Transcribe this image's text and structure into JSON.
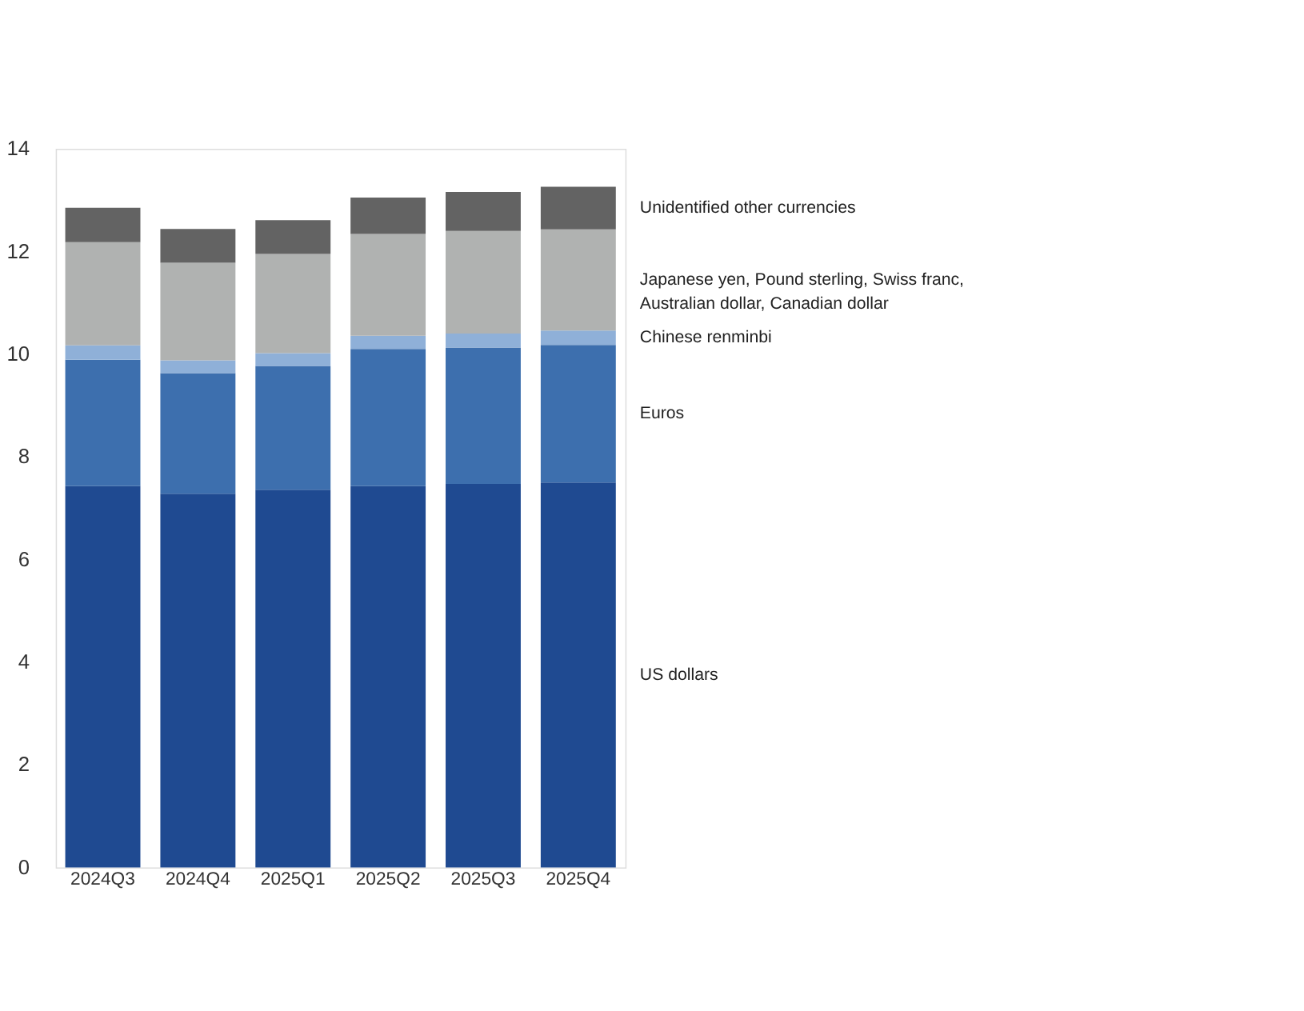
{
  "chart_data": {
    "type": "bar",
    "stacked": true,
    "categories": [
      "2024Q3",
      "2024Q4",
      "2025Q1",
      "2025Q2",
      "2025Q3",
      "2025Q4"
    ],
    "series": [
      {
        "name": "US dollars",
        "color": "#1f4a91",
        "values": [
          7.43,
          7.28,
          7.36,
          7.43,
          7.47,
          7.5
        ]
      },
      {
        "name": "Euros",
        "color": "#3d6fae",
        "values": [
          2.46,
          2.35,
          2.41,
          2.67,
          2.66,
          2.68
        ]
      },
      {
        "name": "Chinese renminbi",
        "color": "#8fb0d8",
        "values": [
          0.28,
          0.25,
          0.25,
          0.26,
          0.27,
          0.28
        ]
      },
      {
        "name": "Japanese yen, Pound sterling, Swiss franc, Australian dollar, Canadian dollar",
        "color": "#b0b2b1",
        "values": [
          2.01,
          1.9,
          1.93,
          1.98,
          2.0,
          1.97
        ]
      },
      {
        "name": "Unidentified other currencies",
        "color": "#636363",
        "values": [
          0.67,
          0.66,
          0.66,
          0.71,
          0.76,
          0.83
        ]
      }
    ],
    "ylim": [
      0,
      14
    ],
    "yticks": [
      0,
      2,
      4,
      6,
      8,
      10,
      12,
      14
    ],
    "grid": false,
    "legend": false
  }
}
